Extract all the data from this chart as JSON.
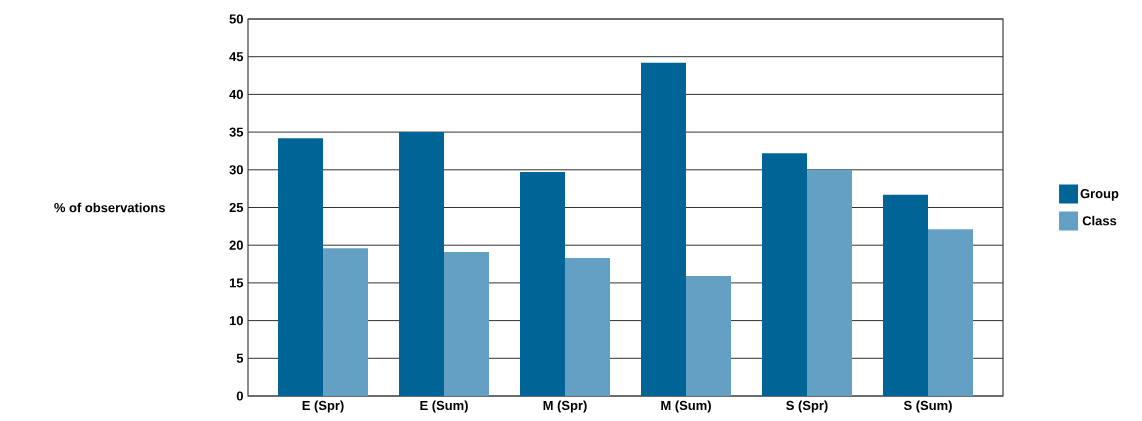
{
  "chart_data": {
    "type": "bar",
    "ylabel": "% of observations",
    "categories": [
      "E (Spr)",
      "E (Sum)",
      "M (Spr)",
      "M (Sum)",
      "S (Spr)",
      "S (Sum)"
    ],
    "series": [
      {
        "name": "Group",
        "color": "#006496",
        "values": [
          34.2,
          35.0,
          29.7,
          44.2,
          32.2,
          26.7
        ]
      },
      {
        "name": "Class",
        "color": "#64a0c4",
        "values": [
          19.6,
          19.1,
          18.3,
          15.9,
          30.0,
          22.1
        ]
      }
    ],
    "ylim": [
      0,
      50
    ],
    "yticks": [
      0,
      5,
      10,
      15,
      20,
      25,
      30,
      35,
      40,
      45,
      50
    ],
    "grid": "y",
    "legend": "right"
  }
}
